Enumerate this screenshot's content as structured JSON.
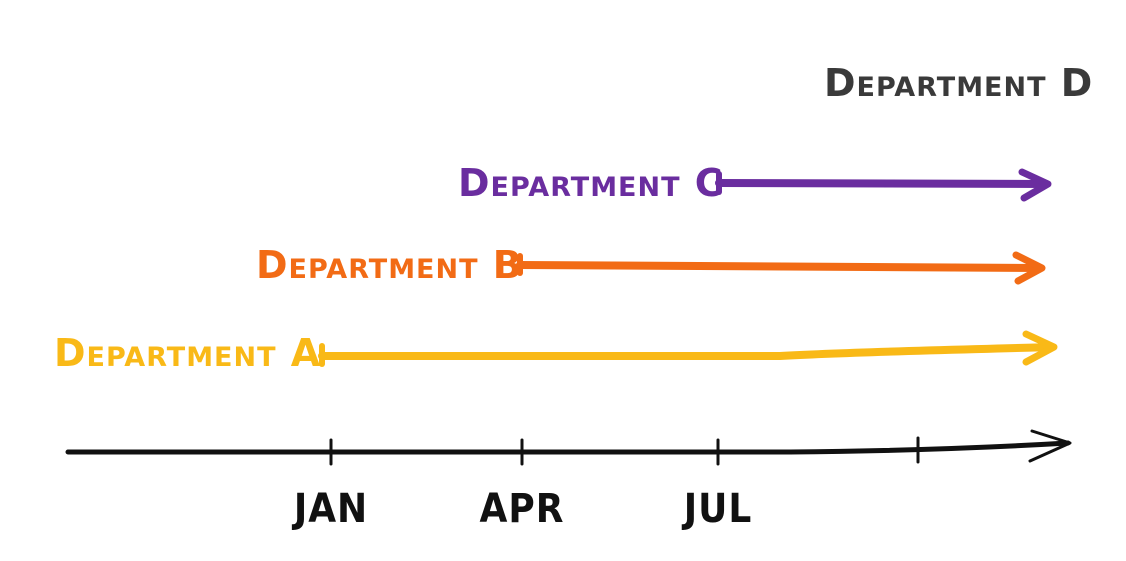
{
  "timeline": {
    "ticks": [
      "JAN",
      "APR",
      "JUL",
      ""
    ],
    "departments": [
      {
        "id": "a",
        "label": "Department A",
        "start": "JAN",
        "color": "#f9b917"
      },
      {
        "id": "b",
        "label": "Department B",
        "start": "APR",
        "color": "#f26b15"
      },
      {
        "id": "c",
        "label": "Department C",
        "start": "JUL",
        "color": "#6a2d9f"
      },
      {
        "id": "d",
        "label": "Department D",
        "start": "",
        "color": "#3a3a3a"
      }
    ]
  }
}
